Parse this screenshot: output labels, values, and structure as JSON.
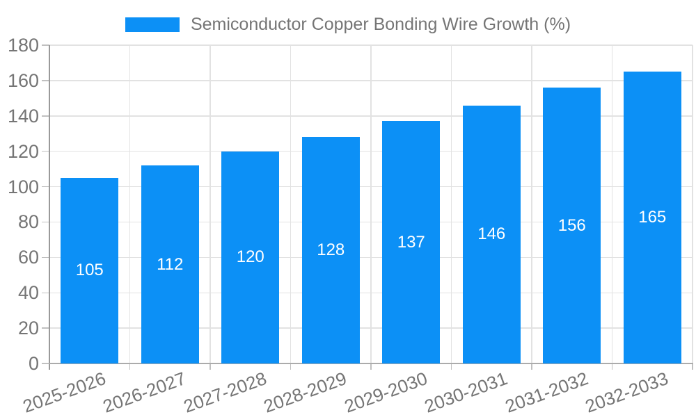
{
  "legend": {
    "series_label": "Semiconductor Copper Bonding Wire Growth (%)"
  },
  "chart_data": {
    "type": "bar",
    "title": "Semiconductor Copper Bonding Wire Growth (%)",
    "categories": [
      "2025-2026",
      "2026-2027",
      "2027-2028",
      "2028-2029",
      "2029-2030",
      "2030-2031",
      "2031-2032",
      "2032-2033"
    ],
    "values": [
      105,
      112,
      120,
      128,
      137,
      146,
      156,
      165
    ],
    "xlabel": "",
    "ylabel": "",
    "ylim": [
      0,
      180
    ],
    "ytick_step": 20,
    "yticks": [
      0,
      20,
      40,
      60,
      80,
      100,
      120,
      140,
      160,
      180
    ],
    "grid": true,
    "grid_vertical": true,
    "legend_position": "top-center",
    "x_label_rotation_deg": -20,
    "colors": {
      "bar": "#0c90f6",
      "grid": "#e2e2e2",
      "axis": "#9a9a9a",
      "axis_x": "#ababab",
      "tick": "#c0c0c0",
      "label": "#757575",
      "value_label": "#ffffff",
      "background": "#ffffff"
    }
  }
}
